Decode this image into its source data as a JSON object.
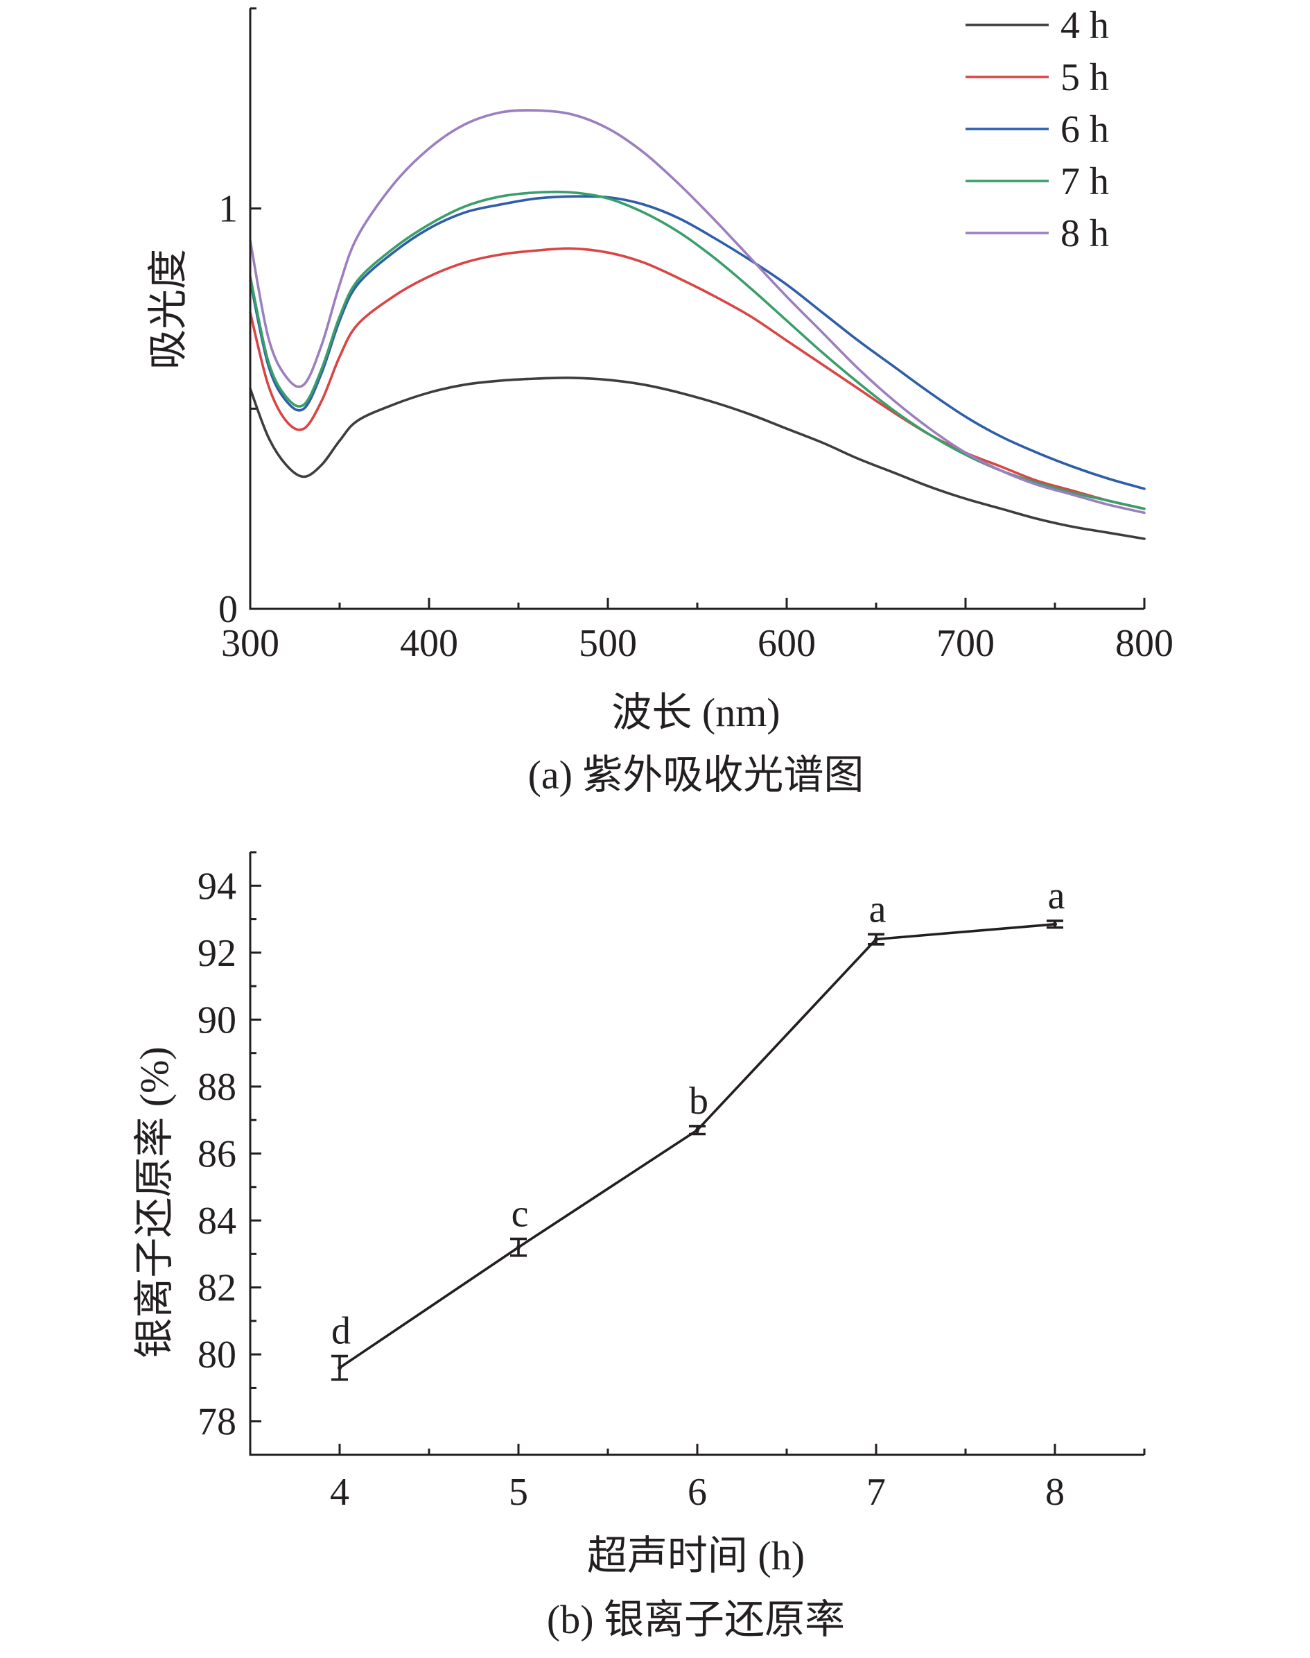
{
  "chart_data": [
    {
      "type": "line",
      "caption": "(a) 紫外吸收光谱图",
      "xlabel": "波长 (nm)",
      "ylabel": "吸光度",
      "xlim": [
        300,
        800
      ],
      "ylim": [
        0,
        1.5
      ],
      "x_ticks": [
        300,
        400,
        500,
        600,
        700,
        800
      ],
      "x_tick_labels": [
        "300",
        "400",
        "500",
        "600",
        "700",
        "800"
      ],
      "y_ticks": [
        0,
        1
      ],
      "y_tick_labels": [
        "0",
        "1"
      ],
      "legend_position": "top-right",
      "x": [
        300,
        310,
        320,
        330,
        340,
        350,
        360,
        380,
        400,
        420,
        440,
        460,
        480,
        500,
        520,
        540,
        560,
        580,
        600,
        620,
        640,
        660,
        680,
        700,
        720,
        740,
        760,
        780,
        800
      ],
      "series": [
        {
          "name": "4 h",
          "color": "#3d3d3d",
          "values": [
            0.55,
            0.43,
            0.36,
            0.33,
            0.36,
            0.42,
            0.47,
            0.51,
            0.54,
            0.56,
            0.57,
            0.575,
            0.577,
            0.572,
            0.56,
            0.54,
            0.515,
            0.485,
            0.45,
            0.415,
            0.375,
            0.34,
            0.305,
            0.275,
            0.25,
            0.225,
            0.205,
            0.19,
            0.175
          ]
        },
        {
          "name": "5 h",
          "color": "#d94545",
          "values": [
            0.74,
            0.56,
            0.47,
            0.45,
            0.52,
            0.63,
            0.71,
            0.78,
            0.83,
            0.865,
            0.885,
            0.895,
            0.9,
            0.89,
            0.865,
            0.825,
            0.78,
            0.73,
            0.67,
            0.61,
            0.55,
            0.49,
            0.435,
            0.39,
            0.355,
            0.32,
            0.295,
            0.27,
            0.25
          ]
        },
        {
          "name": "6 h",
          "color": "#2e5ea8",
          "values": [
            0.82,
            0.61,
            0.52,
            0.5,
            0.59,
            0.72,
            0.81,
            0.89,
            0.95,
            0.99,
            1.01,
            1.025,
            1.03,
            1.028,
            1.01,
            0.975,
            0.925,
            0.87,
            0.81,
            0.74,
            0.67,
            0.605,
            0.54,
            0.48,
            0.43,
            0.39,
            0.355,
            0.325,
            0.3
          ]
        },
        {
          "name": "7 h",
          "color": "#3a9e6b",
          "values": [
            0.83,
            0.62,
            0.53,
            0.51,
            0.6,
            0.73,
            0.82,
            0.9,
            0.96,
            1.005,
            1.03,
            1.04,
            1.04,
            1.025,
            0.99,
            0.94,
            0.875,
            0.8,
            0.72,
            0.64,
            0.565,
            0.495,
            0.435,
            0.385,
            0.345,
            0.315,
            0.29,
            0.27,
            0.25
          ]
        },
        {
          "name": "8 h",
          "color": "#9b7fbf",
          "values": [
            0.92,
            0.68,
            0.58,
            0.56,
            0.66,
            0.81,
            0.93,
            1.06,
            1.15,
            1.21,
            1.24,
            1.245,
            1.235,
            1.2,
            1.14,
            1.06,
            0.97,
            0.875,
            0.78,
            0.69,
            0.6,
            0.52,
            0.45,
            0.39,
            0.345,
            0.31,
            0.285,
            0.26,
            0.24
          ]
        }
      ]
    },
    {
      "type": "line",
      "caption": "(b) 银离子还原率",
      "xlabel": "超声时间 (h)",
      "ylabel": "银离子还原率 (%)",
      "xlim": [
        3.5,
        8.5
      ],
      "ylim": [
        77,
        95
      ],
      "x_ticks": [
        4,
        5,
        6,
        7,
        8
      ],
      "x_tick_labels": [
        "4",
        "5",
        "6",
        "7",
        "8"
      ],
      "y_ticks": [
        78,
        80,
        82,
        84,
        86,
        88,
        90,
        92,
        94
      ],
      "y_tick_labels": [
        "78",
        "80",
        "82",
        "84",
        "86",
        "88",
        "90",
        "92",
        "94"
      ],
      "color": "#231f20",
      "points": [
        {
          "x": 4,
          "y": 79.6,
          "error": 0.35,
          "label": "d"
        },
        {
          "x": 5,
          "y": 83.2,
          "error": 0.25,
          "label": "c"
        },
        {
          "x": 6,
          "y": 86.7,
          "error": 0.12,
          "label": "b"
        },
        {
          "x": 7,
          "y": 92.4,
          "error": 0.15,
          "label": "a"
        },
        {
          "x": 8,
          "y": 92.85,
          "error": 0.1,
          "label": "a"
        }
      ]
    }
  ]
}
